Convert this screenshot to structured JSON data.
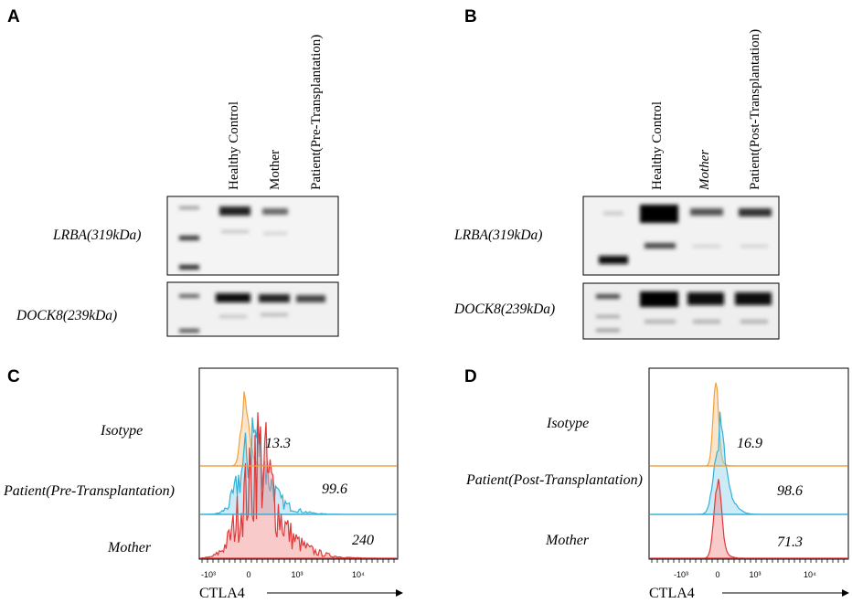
{
  "panels": [
    {
      "label": "A",
      "lanes": [
        "Healthy Control",
        "Mother",
        "Patient(Pre-Transplantation)"
      ],
      "blots": [
        "LRBA(319kDa)",
        "DOCK8(239kDa)"
      ]
    },
    {
      "label": "B",
      "lanes": [
        "Healthy Control",
        "Mother",
        "Patient(Post-Transplantation)"
      ],
      "blots": [
        "LRBA(319kDa)",
        "DOCK8(239kDa)"
      ]
    },
    {
      "label": "C",
      "histograms": [
        {
          "name": "Isotype",
          "value": 13.3
        },
        {
          "name": "Patient(Pre-Transplantation)",
          "value": 99.6
        },
        {
          "name": "Mother",
          "value": 240
        }
      ],
      "axis_ticks": [
        "-10³",
        "0",
        "10³",
        "10⁴"
      ],
      "axis_label": "CTLA4"
    },
    {
      "label": "D",
      "histograms": [
        {
          "name": "Isotype",
          "value": 16.9
        },
        {
          "name": "Patient(Post-Transplantation)",
          "value": 98.6
        },
        {
          "name": "Mother",
          "value": 71.3
        }
      ],
      "axis_ticks": [
        "-10³",
        "0",
        "10³",
        "10⁴"
      ],
      "axis_label": "CTLA4"
    }
  ]
}
